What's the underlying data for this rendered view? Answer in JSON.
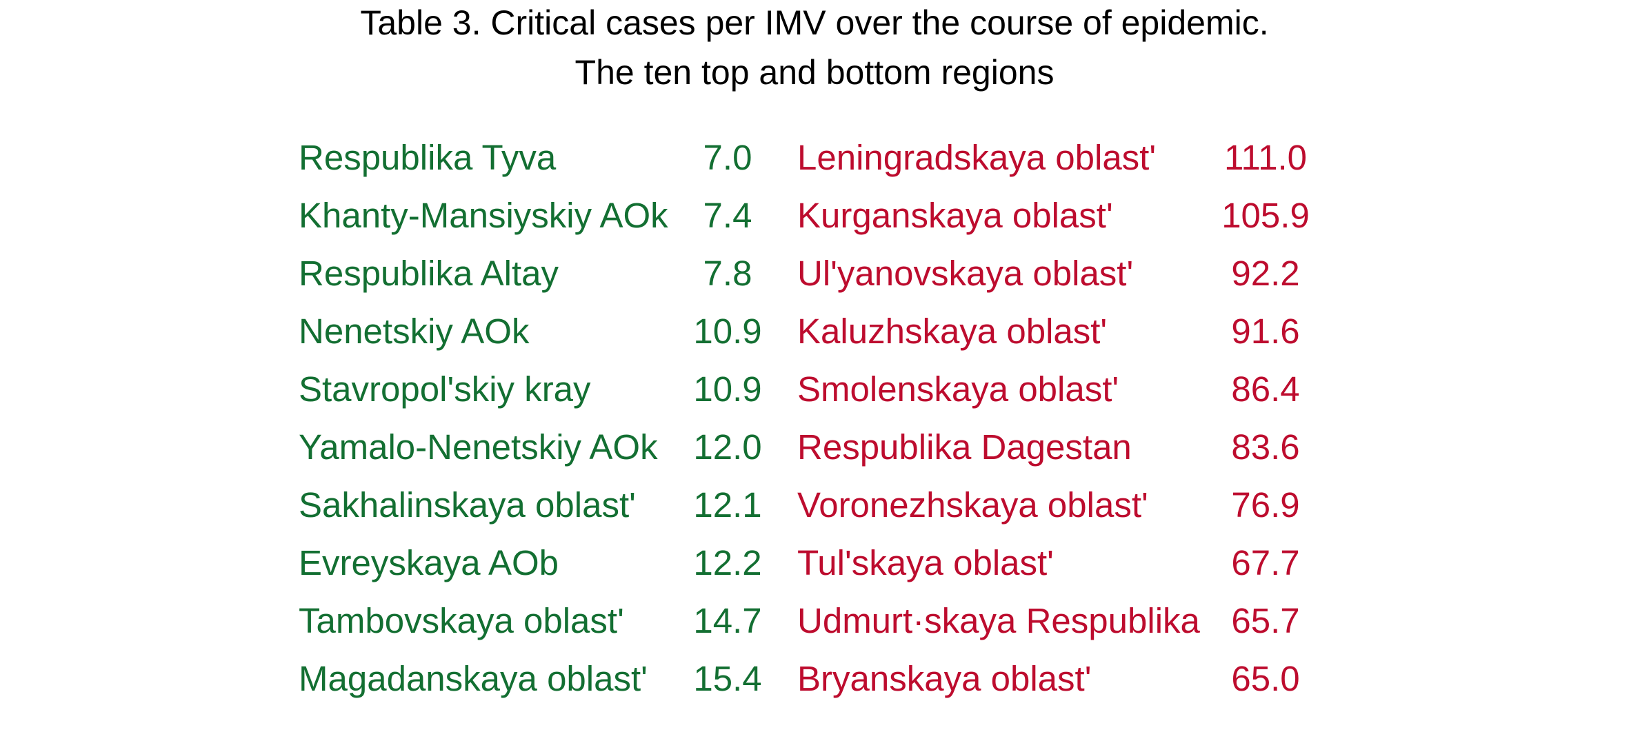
{
  "title": {
    "line1": "Table 3. Critical cases per IMV over the course of epidemic.",
    "line2": "The ten top and bottom regions"
  },
  "colors": {
    "top": "#136f32",
    "bottom": "#bd0c2e",
    "title": "#000000"
  },
  "rows": [
    {
      "top_name": "Respublika Tyva",
      "top_value": "7.0",
      "bottom_name": "Leningradskaya oblastʹ",
      "bottom_value": "111.0"
    },
    {
      "top_name": "Khanty-Mansiyskiy AOk",
      "top_value": "7.4",
      "bottom_name": "Kurganskaya oblastʹ",
      "bottom_value": "105.9"
    },
    {
      "top_name": "Respublika Altay",
      "top_value": "7.8",
      "bottom_name": "Ulʹyanovskaya oblastʹ",
      "bottom_value": "92.2"
    },
    {
      "top_name": "Nenetskiy AOk",
      "top_value": "10.9",
      "bottom_name": "Kaluzhskaya oblastʹ",
      "bottom_value": "91.6"
    },
    {
      "top_name": "Stavropolʹskiy kray",
      "top_value": "10.9",
      "bottom_name": "Smolenskaya oblastʹ",
      "bottom_value": "86.4"
    },
    {
      "top_name": "Yamalo-Nenetskiy AOk",
      "top_value": "12.0",
      "bottom_name": "Respublika Dagestan",
      "bottom_value": "83.6"
    },
    {
      "top_name": "Sakhalinskaya oblastʹ",
      "top_value": "12.1",
      "bottom_name": "Voronezhskaya oblastʹ",
      "bottom_value": "76.9"
    },
    {
      "top_name": "Evreyskaya AOb",
      "top_value": "12.2",
      "bottom_name": "Tulʹskaya oblastʹ",
      "bottom_value": "67.7"
    },
    {
      "top_name": "Tambovskaya oblastʹ",
      "top_value": "14.7",
      "bottom_name": "Udmurt·skaya Respublika",
      "bottom_value": "65.7"
    },
    {
      "top_name": "Magadanskaya oblastʹ",
      "top_value": "15.4",
      "bottom_name": "Bryanskaya oblastʹ",
      "bottom_value": "65.0"
    }
  ]
}
